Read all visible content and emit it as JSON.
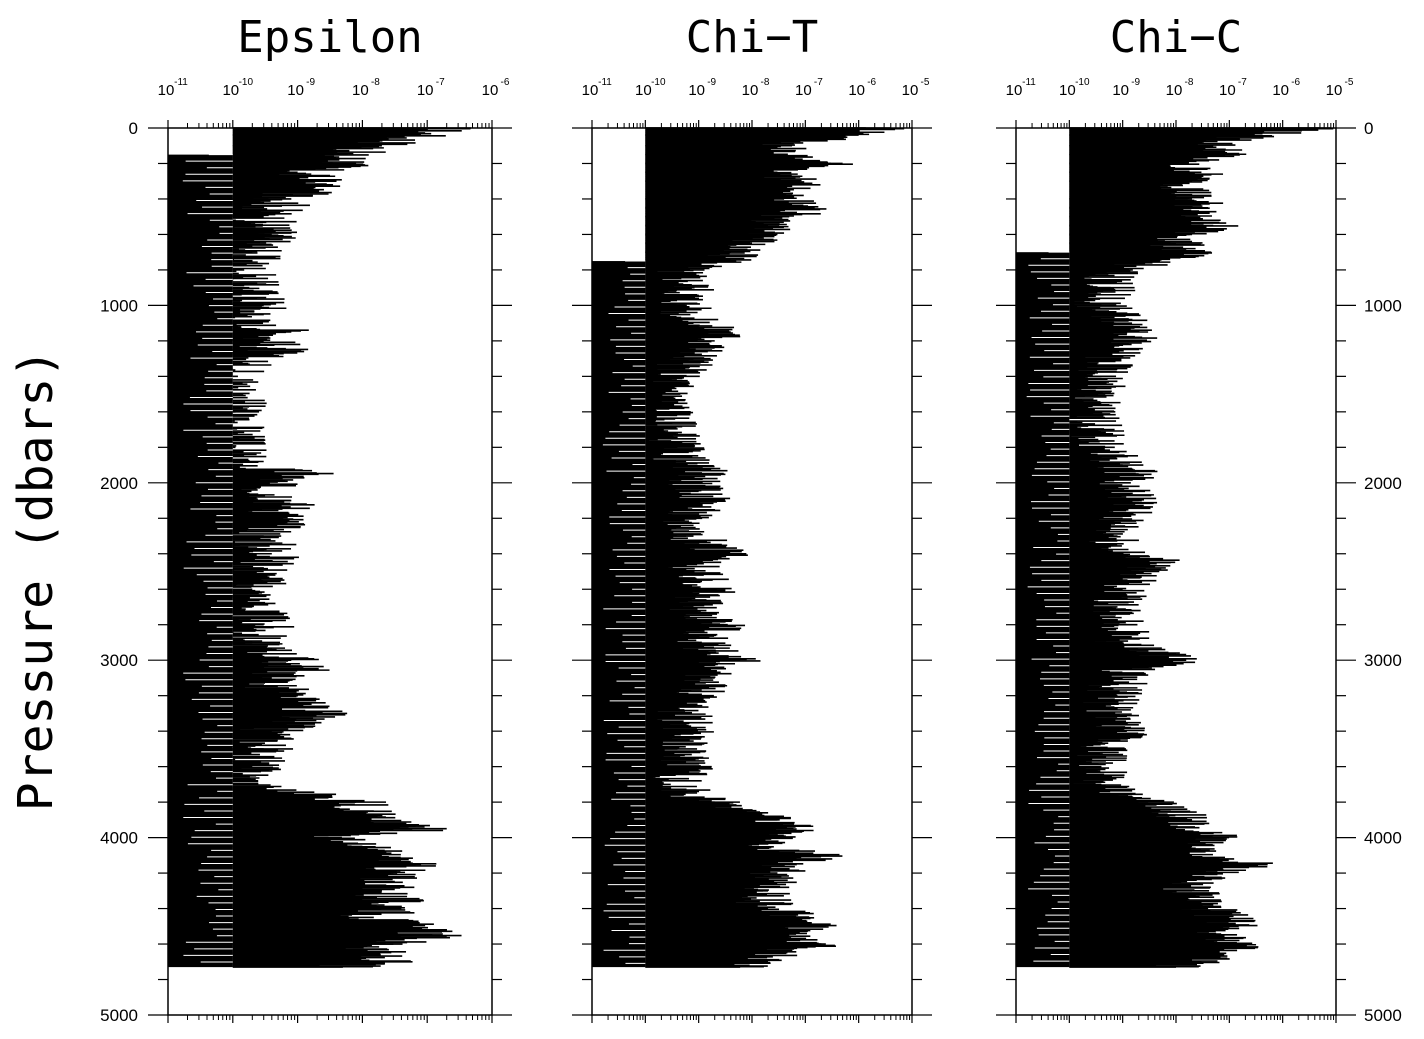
{
  "y_axis_label": "Pressure (dbars)",
  "chart_data": [
    {
      "type": "bar",
      "orientation": "horizontal",
      "title": "Epsilon",
      "xlabel": "",
      "ylabel": "Pressure (dbars)",
      "x_scale": "log",
      "xlim": [
        1e-11,
        1e-06
      ],
      "ylim": [
        5000,
        0
      ],
      "x_ticks": [
        "10",
        "10",
        "10",
        "10",
        "10",
        "10"
      ],
      "x_tick_exponents": [
        "-11",
        "-10",
        "-9",
        "-8",
        "-7",
        "-6"
      ],
      "y_ticks": [
        "0",
        "1000",
        "2000",
        "3000",
        "4000",
        "5000"
      ],
      "grid": false,
      "series": [
        {
          "pressure": [
            0,
            40,
            100,
            150,
            200,
            250,
            300,
            400,
            500,
            600,
            700,
            800,
            900,
            1000,
            1100,
            1150,
            1200,
            1250,
            1300,
            1400,
            1600,
            1800,
            1900,
            1950,
            2000,
            2100,
            2200,
            2300,
            2400,
            2500,
            2600,
            2700,
            2800,
            2900,
            3000,
            3050,
            3100,
            3200,
            3300,
            3400,
            3500,
            3600,
            3700,
            3800,
            3850,
            3900,
            3950,
            4000,
            4050,
            4100,
            4150,
            4200,
            4300,
            4400,
            4450,
            4500,
            4550,
            4600,
            4650,
            4700,
            4730
          ],
          "values": [
            2e-07,
            8e-08,
            2e-08,
            5e-09,
            8e-09,
            1e-09,
            2e-09,
            8e-10,
            3e-10,
            4e-10,
            2e-10,
            1.5e-10,
            1.8e-10,
            3e-10,
            1.5e-10,
            8e-10,
            3e-10,
            6e-10,
            1.5e-10,
            1.2e-10,
            1.1e-10,
            1.1e-10,
            1.2e-10,
            1.5e-09,
            3e-10,
            8e-10,
            6e-10,
            3e-10,
            4e-10,
            3e-10,
            2e-10,
            2e-10,
            3e-10,
            2e-10,
            8e-10,
            1.2e-09,
            4e-10,
            6e-10,
            2e-09,
            4e-10,
            3e-10,
            2e-10,
            1.5e-10,
            8e-09,
            1.5e-08,
            1.2e-08,
            2e-07,
            3e-09,
            1e-08,
            2e-08,
            5e-08,
            3e-08,
            2e-08,
            4e-08,
            1.5e-08,
            6e-08,
            1.2e-07,
            3e-08,
            1.5e-08,
            2e-08,
            5e-09
          ],
          "background_level": 1e-10,
          "background_pressure_range": [
            150,
            4730
          ]
        }
      ]
    },
    {
      "type": "bar",
      "orientation": "horizontal",
      "title": "Chi−T",
      "xlabel": "",
      "ylabel": "",
      "x_scale": "log",
      "xlim": [
        1e-11,
        1e-05
      ],
      "ylim": [
        5000,
        0
      ],
      "x_ticks": [
        "10",
        "10",
        "10",
        "10",
        "10",
        "10",
        "10"
      ],
      "x_tick_exponents": [
        "-11",
        "-10",
        "-9",
        "-8",
        "-7",
        "-6",
        "-5"
      ],
      "grid": false,
      "series": [
        {
          "pressure": [
            0,
            40,
            100,
            150,
            200,
            250,
            300,
            400,
            450,
            500,
            550,
            600,
            650,
            700,
            750,
            800,
            900,
            1000,
            1100,
            1150,
            1200,
            1300,
            1400,
            1600,
            1800,
            1900,
            1950,
            2000,
            2100,
            2200,
            2300,
            2400,
            2450,
            2500,
            2600,
            2700,
            2800,
            2900,
            3000,
            3050,
            3100,
            3200,
            3300,
            3400,
            3500,
            3600,
            3700,
            3800,
            3850,
            3900,
            3950,
            4000,
            4050,
            4100,
            4150,
            4200,
            4300,
            4400,
            4450,
            4500,
            4550,
            4600,
            4650,
            4700,
            4730
          ],
          "values": [
            4e-06,
            1e-06,
            4e-08,
            3e-08,
            5e-07,
            3e-08,
            8e-08,
            4e-08,
            1.5e-07,
            5e-08,
            2e-08,
            3e-08,
            1e-08,
            4e-09,
            5e-09,
            5e-10,
            8e-10,
            6e-10,
            8e-10,
            4e-09,
            2e-09,
            8e-10,
            4e-10,
            3e-10,
            4e-10,
            6e-10,
            2e-09,
            8e-10,
            1.5e-09,
            6e-10,
            8e-10,
            4e-09,
            1e-09,
            8e-10,
            2e-09,
            8e-10,
            3e-09,
            1e-09,
            6e-09,
            1e-09,
            2e-09,
            8e-10,
            6e-10,
            8e-10,
            4e-10,
            1e-09,
            3e-10,
            2e-09,
            8e-09,
            3e-08,
            6e-08,
            2e-08,
            1e-08,
            2.5e-07,
            4e-08,
            3e-08,
            2e-08,
            2e-08,
            1.2e-07,
            2e-07,
            5e-08,
            2e-07,
            3e-08,
            2e-08,
            6e-09
          ],
          "background_level": 1e-10,
          "background_pressure_range": [
            750,
            4730
          ]
        }
      ]
    },
    {
      "type": "bar",
      "orientation": "horizontal",
      "title": "Chi−C",
      "xlabel": "",
      "ylabel": "",
      "x_scale": "log",
      "xlim": [
        1e-11,
        1e-05
      ],
      "ylim": [
        5000,
        0
      ],
      "x_ticks": [
        "10",
        "10",
        "10",
        "10",
        "10",
        "10",
        "10"
      ],
      "x_tick_exponents": [
        "-11",
        "-10",
        "-9",
        "-8",
        "-7",
        "-6",
        "-5"
      ],
      "y_ticks": [
        "0",
        "1000",
        "2000",
        "3000",
        "4000",
        "5000"
      ],
      "grid": false,
      "series": [
        {
          "pressure": [
            0,
            40,
            100,
            150,
            200,
            250,
            300,
            400,
            450,
            500,
            550,
            600,
            650,
            700,
            750,
            800,
            900,
            1000,
            1100,
            1150,
            1200,
            1300,
            1400,
            1600,
            1800,
            1900,
            1950,
            2000,
            2100,
            2200,
            2300,
            2400,
            2450,
            2500,
            2600,
            2700,
            2800,
            2900,
            3000,
            3050,
            3100,
            3200,
            3300,
            3400,
            3500,
            3600,
            3700,
            3800,
            3850,
            3900,
            3950,
            4000,
            4050,
            4100,
            4150,
            4200,
            4300,
            4400,
            4450,
            4500,
            4550,
            4600,
            4650,
            4700,
            4730
          ],
          "values": [
            8e-06,
            3e-07,
            5e-08,
            1e-07,
            1e-08,
            3e-08,
            2e-08,
            2e-08,
            4e-08,
            1.5e-08,
            5e-08,
            2e-08,
            1e-08,
            2e-08,
            5e-09,
            8e-10,
            6e-10,
            4e-10,
            1.5e-09,
            3e-09,
            1.2e-09,
            6e-10,
            4e-10,
            3e-10,
            4e-10,
            1e-09,
            2e-09,
            8e-10,
            2e-09,
            1e-09,
            8e-10,
            1e-09,
            8e-09,
            2e-09,
            1e-09,
            8e-10,
            1.2e-09,
            1e-09,
            1.5e-08,
            1.5e-09,
            1e-09,
            8e-10,
            6e-10,
            1.2e-09,
            6e-10,
            4e-10,
            4e-10,
            3e-09,
            8e-09,
            2e-08,
            1e-08,
            8e-08,
            2e-08,
            2e-08,
            3e-07,
            6e-08,
            2e-08,
            4e-08,
            1e-07,
            1.5e-07,
            8e-08,
            2e-07,
            5e-08,
            3e-08,
            1e-08
          ],
          "background_level": 1e-10,
          "background_pressure_range": [
            700,
            4730
          ]
        }
      ]
    }
  ]
}
